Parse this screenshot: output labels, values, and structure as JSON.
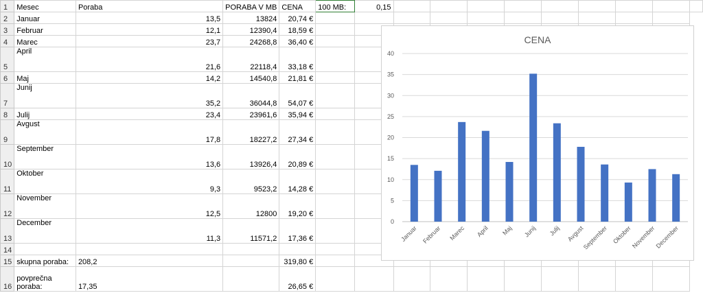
{
  "sheet": {
    "headers": {
      "a": "Mesec",
      "b": "Poraba",
      "c": "PORABA V MB",
      "d": "CENA",
      "e": "100 MB:",
      "f": "0,15"
    },
    "rows": [
      {
        "num": "2",
        "mesec": "Januar",
        "poraba": "13,5",
        "mb": "13824",
        "cena": "20,74 €"
      },
      {
        "num": "3",
        "mesec": "Februar",
        "poraba": "12,1",
        "mb": "12390,4",
        "cena": "18,59 €"
      },
      {
        "num": "4",
        "mesec": "Marec",
        "poraba": "23,7",
        "mb": "24268,8",
        "cena": "36,40 €"
      },
      {
        "num": "5",
        "mesec": "April",
        "poraba": "21,6",
        "mb": "22118,4",
        "cena": "33,18 €"
      },
      {
        "num": "6",
        "mesec": "Maj",
        "poraba": "14,2",
        "mb": "14540,8",
        "cena": "21,81 €"
      },
      {
        "num": "7",
        "mesec": "Junij",
        "poraba": "35,2",
        "mb": "36044,8",
        "cena": "54,07 €"
      },
      {
        "num": "8",
        "mesec": "Julij",
        "poraba": "23,4",
        "mb": "23961,6",
        "cena": "35,94 €"
      },
      {
        "num": "9",
        "mesec": "Avgust",
        "poraba": "17,8",
        "mb": "18227,2",
        "cena": "27,34 €"
      },
      {
        "num": "10",
        "mesec": "September",
        "poraba": "13,6",
        "mb": "13926,4",
        "cena": "20,89 €"
      },
      {
        "num": "11",
        "mesec": "Oktober",
        "poraba": "9,3",
        "mb": "9523,2",
        "cena": "14,28 €"
      },
      {
        "num": "12",
        "mesec": "November",
        "poraba": "12,5",
        "mb": "12800",
        "cena": "19,20 €"
      },
      {
        "num": "13",
        "mesec": "December",
        "poraba": "11,3",
        "mb": "11571,2",
        "cena": "17,36 €"
      }
    ],
    "row1_num": "1",
    "row14_num": "14",
    "total": {
      "num": "15",
      "label": "skupna poraba:",
      "poraba": "208,2",
      "cena": "319,80 €"
    },
    "average": {
      "num": "16",
      "label": "povprečna poraba:",
      "poraba": "17,35",
      "cena": "26,65 €"
    }
  },
  "chart_data": {
    "type": "bar",
    "title": "CENA",
    "categories": [
      "Januar",
      "Februar",
      "Marec",
      "April",
      "Maj",
      "Junij",
      "Julij",
      "Avgust",
      "September",
      "Oktober",
      "November",
      "December"
    ],
    "values": [
      13.5,
      12.1,
      23.7,
      21.6,
      14.2,
      35.2,
      23.4,
      17.8,
      13.6,
      9.3,
      12.5,
      11.3
    ],
    "yticks": [
      "0",
      "5",
      "10",
      "15",
      "20",
      "25",
      "30",
      "35",
      "40"
    ],
    "ylim": [
      0,
      40
    ],
    "grid": true,
    "bar_color": "#4472c4"
  }
}
